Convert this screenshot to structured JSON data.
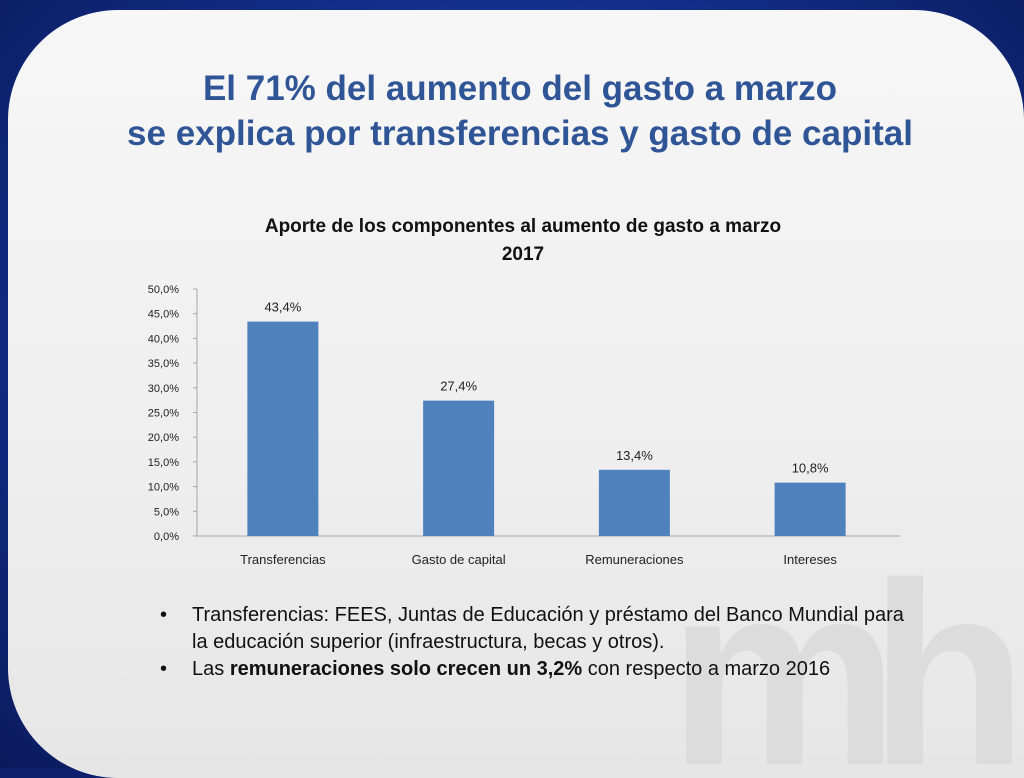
{
  "slide": {
    "title_line1": "El 71% del aumento del gasto a marzo",
    "title_line2": "se explica por transferencias y gasto de capital",
    "watermark": "mh"
  },
  "chart_data": {
    "type": "bar",
    "title_line1": "Aporte de los componentes al aumento de gasto a marzo",
    "title_line2": "2017",
    "categories": [
      "Transferencias",
      "Gasto de capital",
      "Remuneraciones",
      "Intereses"
    ],
    "values": [
      43.4,
      27.4,
      13.4,
      10.8
    ],
    "data_labels": [
      "43,4%",
      "27,4%",
      "13,4%",
      "10,8%"
    ],
    "ylim": [
      0,
      50
    ],
    "ytick_values": [
      0,
      5,
      10,
      15,
      20,
      25,
      30,
      35,
      40,
      45,
      50
    ],
    "ytick_labels": [
      "0,0%",
      "5,0%",
      "10,0%",
      "15,0%",
      "20,0%",
      "25,0%",
      "30,0%",
      "35,0%",
      "40,0%",
      "45,0%",
      "50,0%"
    ],
    "bar_color": "#4f81bd",
    "grid": false
  },
  "bullets": [
    {
      "bullet": "•",
      "text_plain": "Transferencias: FEES, Juntas de Educación y préstamo del Banco Mundial para la educación superior (infraestructura, becas y otros)."
    },
    {
      "bullet": "•",
      "text_prefix": "Las ",
      "text_bold": "remuneraciones solo crecen un 3,2%",
      "text_suffix": " con respecto a marzo 2016"
    }
  ],
  "colors": {
    "title": "#2f5597",
    "frame": "#1a3a9e"
  }
}
